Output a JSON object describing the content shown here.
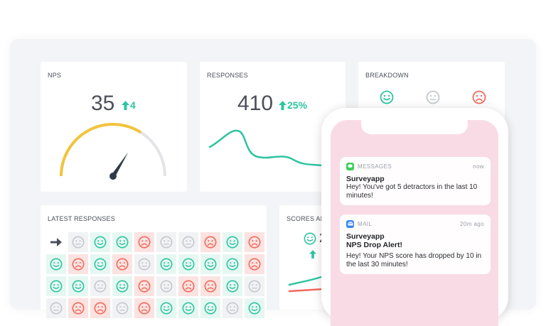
{
  "colors": {
    "promoter": "#2ec4a0",
    "passive": "#c4c8cd",
    "detractor": "#f06a5c",
    "gauge": "#f2c33c",
    "accent": "#2ec4a0"
  },
  "nps": {
    "title": "NPS",
    "value": "35",
    "delta": "4",
    "delta_icon": "arrow-up-icon",
    "gauge_level": 0.68
  },
  "responses": {
    "title": "RESPONSES",
    "value": "410",
    "delta": "25%",
    "delta_icon": "arrow-up-icon"
  },
  "breakdown": {
    "title": "BREAKDOWN",
    "icons": [
      "promoter-face-icon",
      "passive-face-icon",
      "detractor-face-icon"
    ]
  },
  "latest": {
    "title": "LATEST RESPONSES",
    "pointer_icon": "arrow-right-icon",
    "rows": [
      [
        "none",
        "passive",
        "promoter",
        "promoter",
        "detractor",
        "passive",
        "passive",
        "detractor",
        "promoter",
        "detractor"
      ],
      [
        "promoter",
        "detractor",
        "promoter",
        "detractor",
        "passive",
        "promoter",
        "promoter",
        "promoter",
        "promoter",
        "detractor"
      ],
      [
        "promoter",
        "promoter",
        "passive",
        "promoter",
        "detractor",
        "passive",
        "detractor",
        "detractor",
        "promoter",
        "passive"
      ],
      [
        "passive",
        "detractor",
        "detractor",
        "passive",
        "detractor",
        "promoter",
        "promoter",
        "promoter",
        "passive",
        "promoter"
      ]
    ]
  },
  "scores": {
    "title": "SCORES ANALYSIS",
    "value_prefix": "2",
    "delta_icon": "arrow-up-icon"
  },
  "notifications": [
    {
      "app": "MESSAGES",
      "app_icon": "messages-icon",
      "time": "now",
      "title": "Surveyapp",
      "subtitle": "",
      "body": "Hey! You've got 5 detractors in the last 10 minutes!"
    },
    {
      "app": "MAIL",
      "app_icon": "mail-icon",
      "time": "20m ago",
      "title": "Surveyapp",
      "subtitle": "NPS Drop Alert!",
      "body": "Hey! Your NPS score has dropped by 10 in the last 30 minutes!"
    }
  ]
}
